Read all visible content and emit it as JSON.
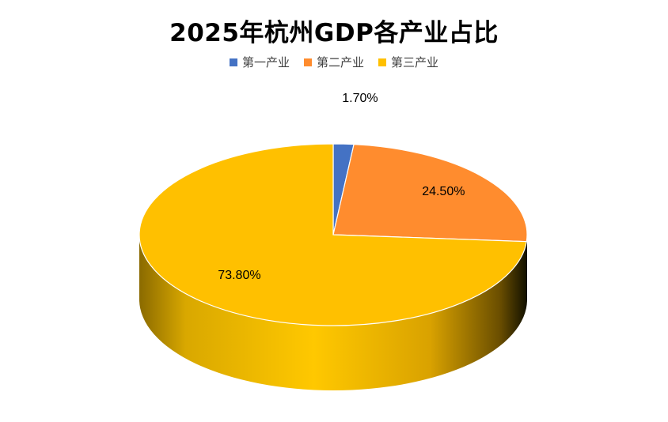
{
  "chart_data": {
    "type": "pie",
    "title": "2025年杭州GDP各产业占比",
    "legend_position": "top",
    "three_d": true,
    "categories": [
      "第一产业",
      "第二产业",
      "第三产业"
    ],
    "values": [
      1.7,
      24.5,
      73.8
    ],
    "data_labels": [
      "1.70%",
      "24.50%",
      "73.80%"
    ],
    "colors": [
      "#4472C4",
      "#FF8C2E",
      "#FFC000"
    ]
  }
}
